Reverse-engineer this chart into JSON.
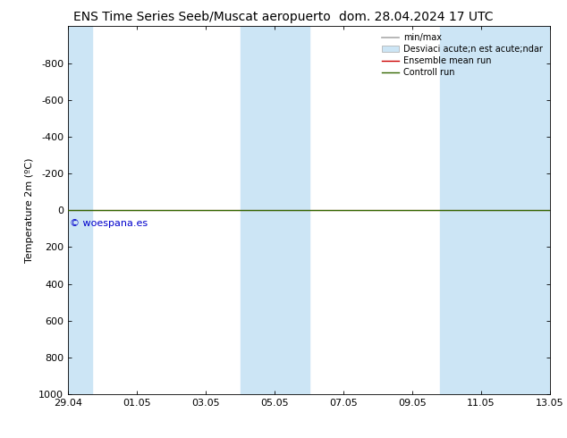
{
  "title_left": "ENS Time Series Seeb/Muscat aeropuerto",
  "title_right": "dom. 28.04.2024 17 UTC",
  "ylabel": "Temperature 2m (ºC)",
  "ylim_bottom": 1000,
  "ylim_top": -1000,
  "yticks": [
    -800,
    -600,
    -400,
    -200,
    0,
    200,
    400,
    600,
    800,
    1000
  ],
  "xtick_labels": [
    "29.04",
    "01.05",
    "03.05",
    "05.05",
    "07.05",
    "09.05",
    "11.05",
    "13.05"
  ],
  "xtick_positions": [
    0,
    2,
    4,
    6,
    8,
    10,
    12,
    14
  ],
  "background_color": "#ffffff",
  "plot_bg_color": "#ffffff",
  "shaded_bands": [
    {
      "x_start": 0.0,
      "x_end": 0.7,
      "color": "#cce5f5"
    },
    {
      "x_start": 5.0,
      "x_end": 6.0,
      "color": "#cce5f5"
    },
    {
      "x_start": 5.9,
      "x_end": 7.0,
      "color": "#cce5f5"
    },
    {
      "x_start": 10.8,
      "x_end": 12.0,
      "color": "#cce5f5"
    },
    {
      "x_start": 12.0,
      "x_end": 14.0,
      "color": "#cce5f5"
    }
  ],
  "horizontal_line_y": 0,
  "horizontal_line_color_ensemble": "#cc0000",
  "horizontal_line_color_control": "#336600",
  "watermark_text": "© woespana.es",
  "watermark_color": "#0000cc",
  "legend_label_minmax": "min/max",
  "legend_label_std": "Desviaci acute;n est acute;ndar",
  "legend_label_ensemble": "Ensemble mean run",
  "legend_label_control": "Controll run",
  "legend_color_minmax": "#aaaaaa",
  "legend_color_std": "#cce5f5",
  "legend_color_ensemble": "#cc0000",
  "legend_color_control": "#336600",
  "title_fontsize": 10,
  "axis_fontsize": 8,
  "tick_fontsize": 8,
  "watermark_fontsize": 8
}
